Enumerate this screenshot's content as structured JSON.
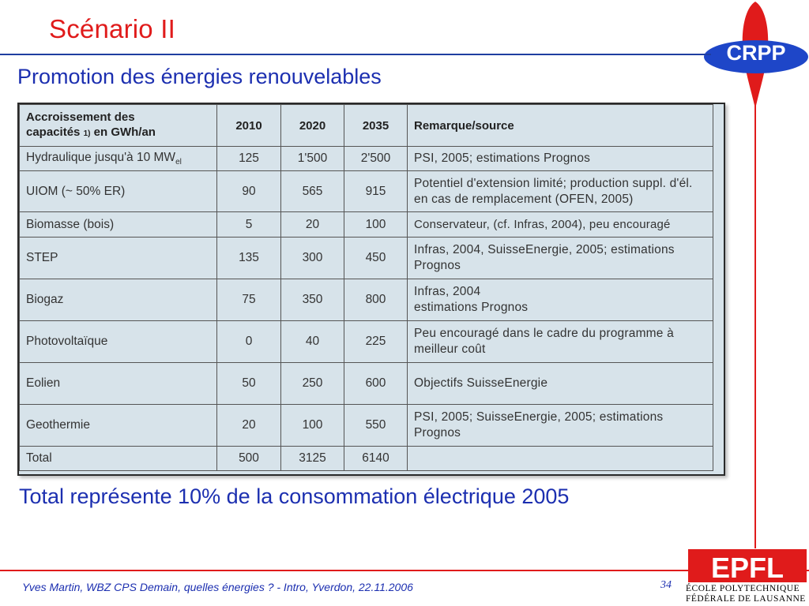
{
  "slide": {
    "title": "Scénario II",
    "subtitle": "Promotion des énergies renouvelables",
    "summary": "Total représente 10% de la consommation électrique 2005",
    "footer": "Yves Martin, WBZ CPS Demain, quelles énergies ? - Intro, Yverdon, 22.11.2006",
    "page_number": "34"
  },
  "logos": {
    "crpp": "CRPP",
    "epfl": "EPFL",
    "epfl_line1": "ÉCOLE POLYTECHNIQUE",
    "epfl_line2": "FÉDÉRALE DE LAUSANNE"
  },
  "table": {
    "header": {
      "col1_line1": "Accroissement des",
      "col1_line2": "capacités",
      "col1_mark": "1)",
      "col1_line2_rest": "en GWh/an",
      "col2010": "2010",
      "col2020": "2020",
      "col2035": "2035",
      "remark": "Remarque/source"
    },
    "rows": [
      {
        "label": "Hydraulique jusqu'à 10 MW",
        "label_sub": "el",
        "y2010": "125",
        "y2020": "1'500",
        "y2035": "2'500",
        "remark": "PSI, 2005; estimations Prognos"
      },
      {
        "label": "UIOM (~ 50% ER)",
        "y2010": "90",
        "y2020": "565",
        "y2035": "915",
        "remark": "Potentiel d'extension limité; production suppl. d'él. en cas de remplacement (OFEN, 2005)"
      },
      {
        "label": "Biomasse (bois)",
        "y2010": "5",
        "y2020": "20",
        "y2035": "100",
        "remark": "Conservateur, (cf. Infras, 2004), peu encouragé"
      },
      {
        "label": "STEP",
        "y2010": "135",
        "y2020": "300",
        "y2035": "450",
        "remark": "Infras, 2004, SuisseEnergie, 2005; estimations Prognos"
      },
      {
        "label": "Biogaz",
        "y2010": "75",
        "y2020": "350",
        "y2035": "800",
        "remark_line1": "Infras, 2004",
        "remark_line2": "estimations Prognos"
      },
      {
        "label": "Photovoltaïque",
        "y2010": "0",
        "y2020": "40",
        "y2035": "225",
        "remark": "Peu encouragé dans le cadre du programme à meilleur coût"
      },
      {
        "label": "Eolien",
        "y2010": "50",
        "y2020": "250",
        "y2035": "600",
        "remark": "Objectifs SuisseEnergie"
      },
      {
        "label": "Geothermie",
        "y2010": "20",
        "y2020": "100",
        "y2035": "550",
        "remark": "PSI, 2005; SuisseEnergie, 2005; estimations Prognos"
      },
      {
        "label": "Total",
        "y2010": "500",
        "y2020": "3125",
        "y2035": "6140",
        "remark": ""
      }
    ]
  },
  "colors": {
    "title": "#e01b1b",
    "text_blue": "#1c2fb0",
    "table_bg": "#d7e3ea",
    "crpp_blue": "#1e46c8",
    "epfl_red": "#e01b1b"
  }
}
